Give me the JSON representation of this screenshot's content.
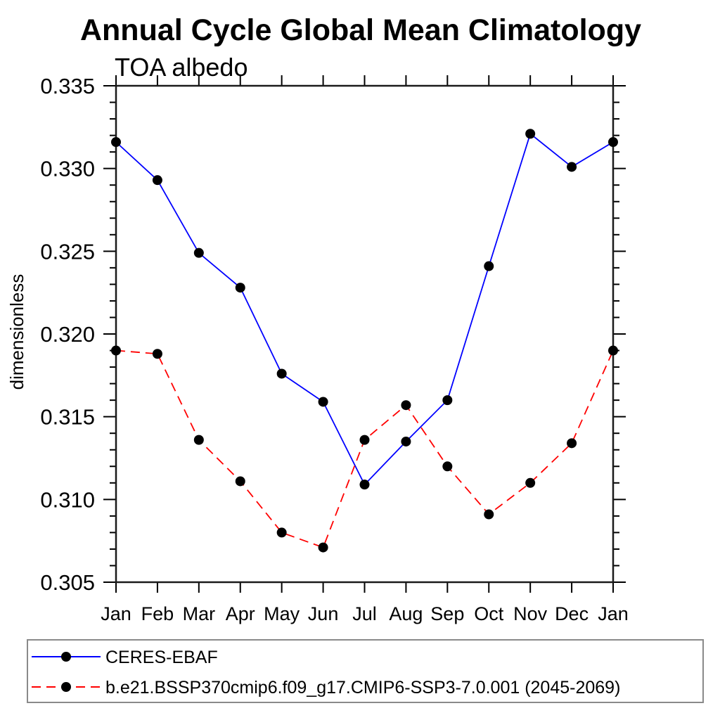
{
  "chart_data": {
    "type": "line",
    "title": "Annual Cycle Global Mean Climatology",
    "subtitle": "TOA albedo",
    "xlabel": "",
    "ylabel": "dimensionless",
    "ylim": [
      0.305,
      0.335
    ],
    "ytick_step": 0.005,
    "yminor_step": 0.001,
    "ytick_labels": [
      "0.305",
      "0.310",
      "0.315",
      "0.320",
      "0.325",
      "0.330",
      "0.335"
    ],
    "grid": false,
    "legend_position": "bottom box",
    "categories": [
      "Jan",
      "Feb",
      "Mar",
      "Apr",
      "May",
      "Jun",
      "Jul",
      "Aug",
      "Sep",
      "Oct",
      "Nov",
      "Dec",
      "Jan"
    ],
    "series": [
      {
        "name": "CERES-EBAF",
        "color": "#0000ff",
        "line_style": "solid",
        "marker": "filled-circle",
        "marker_color": "#000000",
        "values": [
          0.3316,
          0.3293,
          0.3249,
          0.3228,
          0.3176,
          0.3159,
          0.3109,
          0.3135,
          0.316,
          0.3241,
          0.3321,
          0.3301,
          0.3316
        ]
      },
      {
        "name": "b.e21.BSSP370cmip6.f09_g17.CMIP6-SSP3-7.0.001 (2045-2069)",
        "color": "#ff0000",
        "line_style": "dashed",
        "marker": "filled-circle",
        "marker_color": "#000000",
        "values": [
          0.319,
          0.3188,
          0.3136,
          0.3111,
          0.308,
          0.3071,
          0.3136,
          0.3157,
          0.312,
          0.3091,
          0.311,
          0.3134,
          0.319
        ]
      }
    ]
  }
}
